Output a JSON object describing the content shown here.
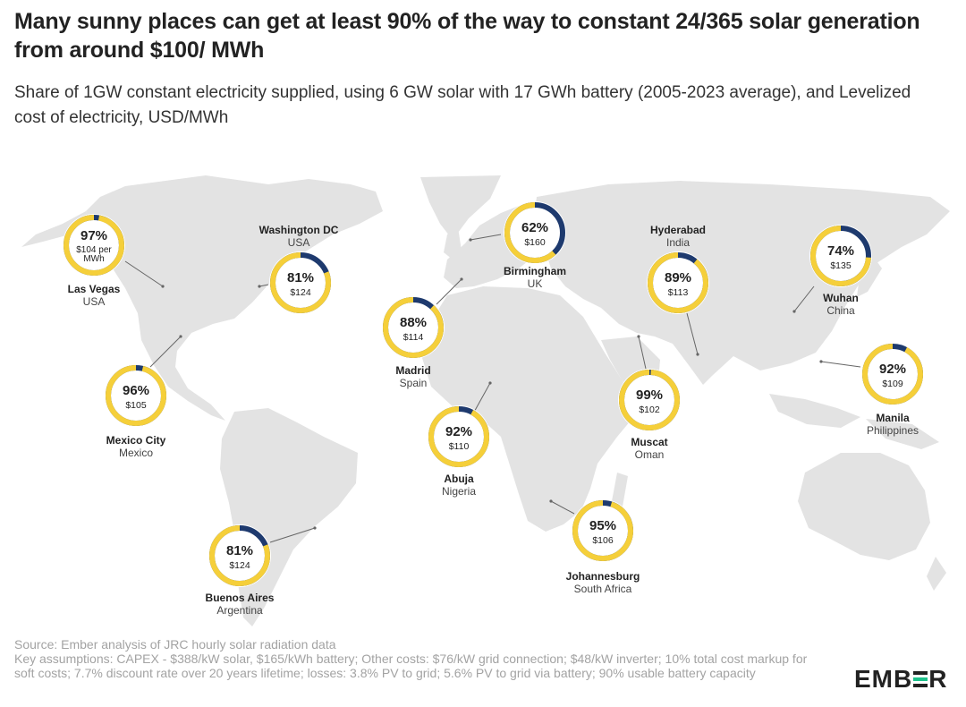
{
  "title": "Many sunny places can get at least 90% of the way to constant 24/365 solar generation from around $100/ MWh",
  "subtitle": "Share of 1GW constant electricity supplied, using 6 GW solar with 17 GWh battery (2005-2023 average), and Levelized cost of electricity, USD/MWh",
  "colors": {
    "share": "#f5cf3a",
    "remainder": "#1e3a6e",
    "map": "#e3e3e3",
    "leader": "#666666"
  },
  "chart_data": {
    "type": "donut-map",
    "series": [
      {
        "name": "Share of constant electricity supplied",
        "unit": "%"
      },
      {
        "name": "Levelized cost of electricity",
        "unit": "USD/MWh"
      }
    ],
    "locations": [
      {
        "city": "Las Vegas",
        "country": "USA",
        "share": 97,
        "share_label": "97%",
        "cost_label": "$104 per MWh",
        "cost": 104
      },
      {
        "city": "Washington DC",
        "country": "USA",
        "share": 81,
        "share_label": "81%",
        "cost_label": "$124",
        "cost": 124
      },
      {
        "city": "Mexico City",
        "country": "Mexico",
        "share": 96,
        "share_label": "96%",
        "cost_label": "$105",
        "cost": 105
      },
      {
        "city": "Buenos Aires",
        "country": "Argentina",
        "share": 81,
        "share_label": "81%",
        "cost_label": "$124",
        "cost": 124
      },
      {
        "city": "Birmingham",
        "country": "UK",
        "share": 62,
        "share_label": "62%",
        "cost_label": "$160",
        "cost": 160
      },
      {
        "city": "Madrid",
        "country": "Spain",
        "share": 88,
        "share_label": "88%",
        "cost_label": "$114",
        "cost": 114
      },
      {
        "city": "Abuja",
        "country": "Nigeria",
        "share": 92,
        "share_label": "92%",
        "cost_label": "$110",
        "cost": 110
      },
      {
        "city": "Hyderabad",
        "country": "India",
        "share": 89,
        "share_label": "89%",
        "cost_label": "$113",
        "cost": 113
      },
      {
        "city": "Muscat",
        "country": "Oman",
        "share": 99,
        "share_label": "99%",
        "cost_label": "$102",
        "cost": 102
      },
      {
        "city": "Johannesburg",
        "country": "South Africa",
        "share": 95,
        "share_label": "95%",
        "cost_label": "$106",
        "cost": 106
      },
      {
        "city": "Wuhan",
        "country": "China",
        "share": 74,
        "share_label": "74%",
        "cost_label": "$135",
        "cost": 135
      },
      {
        "city": "Manila",
        "country": "Philippines",
        "share": 92,
        "share_label": "92%",
        "cost_label": "$109",
        "cost": 109
      }
    ]
  },
  "footer": {
    "source": "Source: Ember analysis of JRC hourly solar radiation data",
    "assumptions": "Key assumptions: CAPEX - $388/kW solar, $165/kWh battery; Other costs: $76/kW grid connection; $48/kW inverter; 10% total cost markup for soft costs; 7.7% discount rate over 20 years lifetime; losses: 3.8% PV to grid; 5.6% PV to grid via battery; 90% usable battery capacity"
  },
  "logo": {
    "prefix": "EMB",
    "suffix": "R"
  }
}
